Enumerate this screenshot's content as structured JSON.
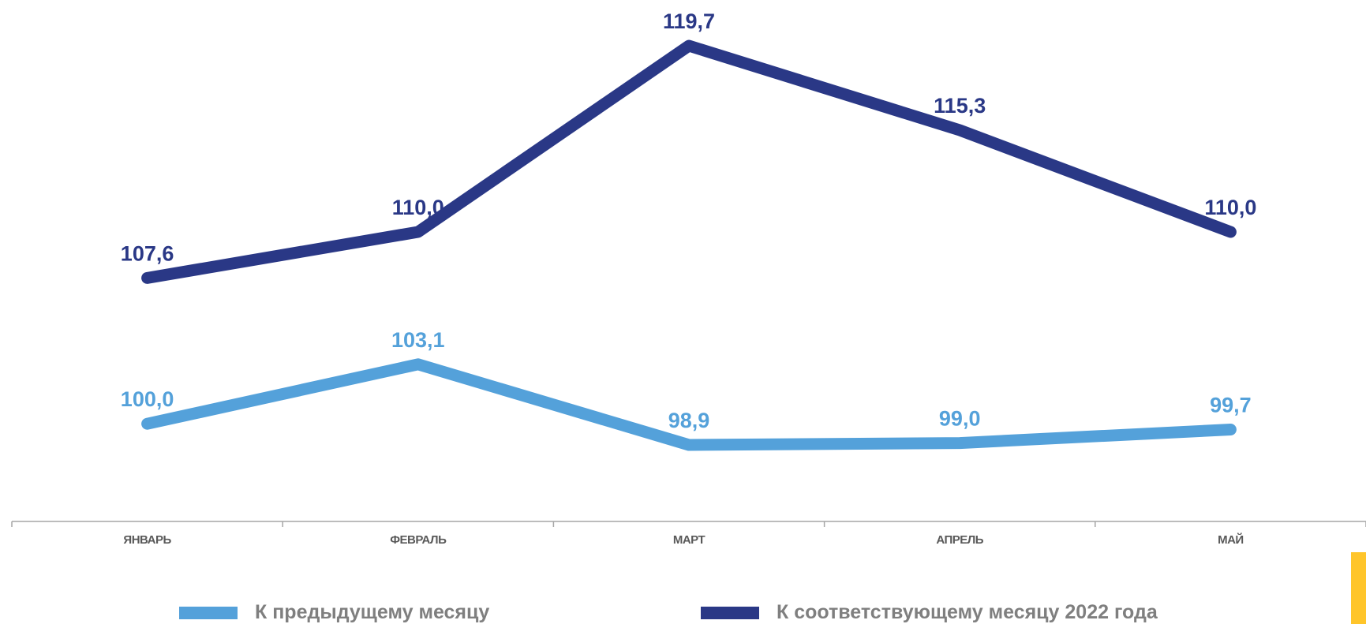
{
  "chart_data": {
    "type": "line",
    "categories": [
      "ЯНВАРЬ",
      "ФЕВРАЛЬ",
      "МАРТ",
      "АПРЕЛЬ",
      "МАЙ"
    ],
    "series": [
      {
        "name": "К соответствующему месяцу 2022  года",
        "values": [
          107.6,
          110.0,
          119.7,
          115.3,
          110.0
        ],
        "labels": [
          "107,6",
          "110,0",
          "119,7",
          "115,3",
          "110,0"
        ],
        "color": "#2a3886",
        "label_position": "above"
      },
      {
        "name": "К предыдущему месяцу",
        "values": [
          100.0,
          103.1,
          98.9,
          99.0,
          99.7
        ],
        "labels": [
          "100,0",
          "103,1",
          "98,9",
          "99,0",
          "99,7"
        ],
        "color": "#54a1da",
        "label_position": "above"
      }
    ],
    "title": "",
    "xlabel": "",
    "ylabel": "",
    "ylim": [
      95,
      121
    ],
    "grid": false,
    "legend_position": "bottom"
  },
  "legend": {
    "items": [
      {
        "label": "К предыдущему месяцу",
        "color": "#54a1da"
      },
      {
        "label": "К соответствующему месяцу 2022  года",
        "color": "#2a3886"
      }
    ]
  },
  "colors": {
    "axis": "#a6a6a6",
    "category_text": "#595959",
    "accent": "#ffc52a"
  }
}
